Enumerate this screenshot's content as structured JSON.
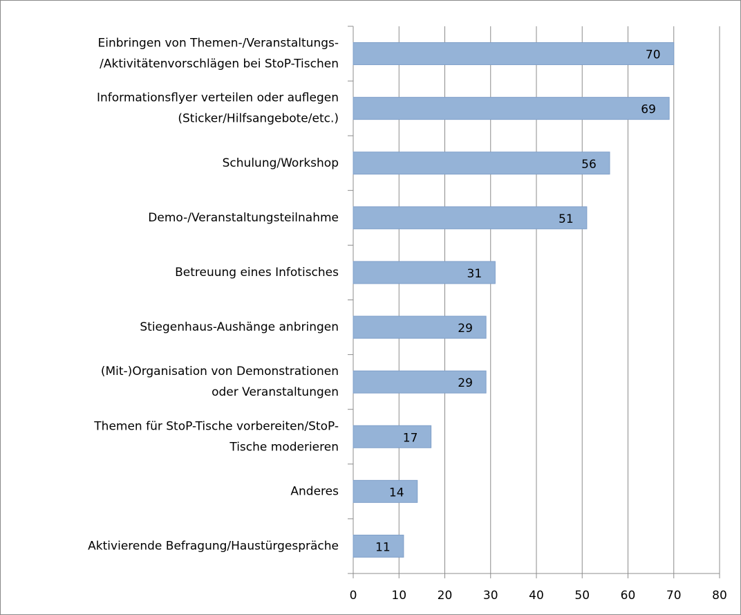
{
  "chart_data": {
    "type": "bar",
    "orientation": "horizontal",
    "categories": [
      "Einbringen von Themen-/Veranstaltungs-\n/Aktivitätenvorschlägen bei StoP-Tischen",
      "Informationsflyer verteilen oder auflegen\n(Sticker/Hilfsangebote/etc.)",
      "Schulung/Workshop",
      "Demo-/Veranstaltungsteilnahme",
      "Betreuung eines Infotisches",
      "Stiegenhaus-Aushänge anbringen",
      "(Mit-)Organisation von Demonstrationen\noder Veranstaltungen",
      "Themen für StoP-Tische vorbereiten/StoP-\nTische moderieren",
      "Anderes",
      "Aktivierende Befragung/Haustürgespräche"
    ],
    "values": [
      70,
      69,
      56,
      51,
      31,
      29,
      29,
      17,
      14,
      11
    ],
    "color": "#95b3d7",
    "xlim": [
      0,
      80
    ],
    "xticks": [
      0,
      10,
      20,
      30,
      40,
      50,
      60,
      70,
      80
    ],
    "grid": true
  }
}
